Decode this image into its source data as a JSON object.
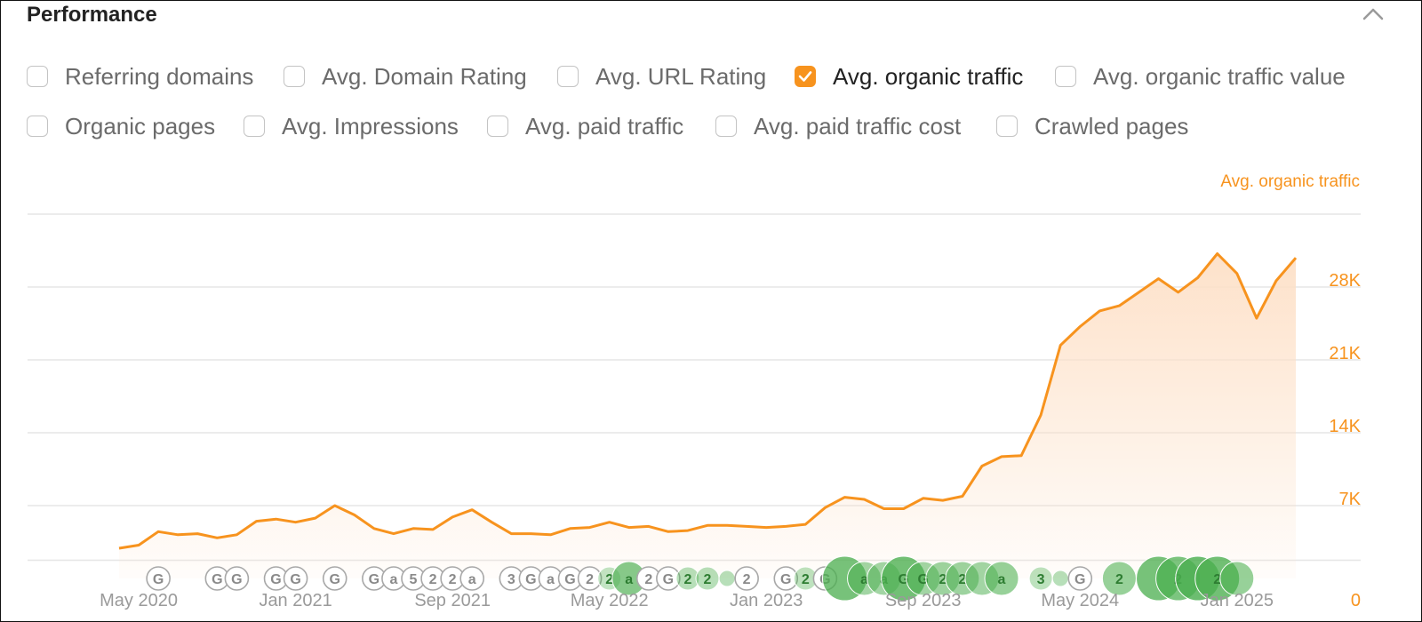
{
  "panel": {
    "title": "Performance"
  },
  "options": [
    {
      "label": "Referring domains",
      "checked": false
    },
    {
      "label": "Avg. Domain Rating",
      "checked": false
    },
    {
      "label": "Avg. URL Rating",
      "checked": false
    },
    {
      "label": "Avg. organic traffic",
      "checked": true
    },
    {
      "label": "Avg. organic traffic value",
      "checked": false
    },
    {
      "label": "Organic pages",
      "checked": false
    },
    {
      "label": "Avg. Impressions",
      "checked": false
    },
    {
      "label": "Avg. paid traffic",
      "checked": false
    },
    {
      "label": "Avg. paid traffic cost",
      "checked": false
    },
    {
      "label": "Crawled pages",
      "checked": false
    }
  ],
  "colors": {
    "accent": "#f7931e",
    "area": "#fde0c7",
    "grid": "#e6e6e6",
    "axis_text": "#9a9a9a",
    "marker_green": "#4caf50"
  },
  "icons": {
    "collapse": "chevron-up-icon",
    "checkbox_checked": "check-icon"
  },
  "chart_data": {
    "type": "area",
    "series": [
      {
        "name": "Avg. organic traffic",
        "values": [
          2900,
          3200,
          4500,
          4200,
          4300,
          3900,
          4200,
          5500,
          5700,
          5400,
          5800,
          7000,
          6100,
          4800,
          4300,
          4800,
          4700,
          5900,
          6600,
          5400,
          4300,
          4300,
          4200,
          4800,
          4900,
          5400,
          4900,
          5000,
          4500,
          4600,
          5100,
          5100,
          5000,
          4900,
          5000,
          5200,
          6800,
          7800,
          7600,
          6700,
          6700,
          7700,
          7500,
          7900,
          10800,
          11700,
          11800,
          15700,
          22400,
          24200,
          25700,
          26200,
          27500,
          28800,
          27500,
          28900,
          31200,
          29300,
          25000,
          28600,
          30800
        ]
      }
    ],
    "x_start": "Apr 2020",
    "x_end": "Apr 2025",
    "x_ticks": [
      "May 2020",
      "Jan 2021",
      "Sep 2021",
      "May 2022",
      "Jan 2023",
      "Sep 2023",
      "May 2024",
      "Jan 2025"
    ],
    "y_ticks": [
      "0",
      "7K",
      "14K",
      "21K",
      "28K"
    ],
    "ylim": [
      0,
      35000
    ],
    "legend": "Avg. organic traffic",
    "legend_position": "top-right",
    "grid": true,
    "markers": [
      {
        "label": "G",
        "date": "Jun 2020",
        "size": "small",
        "tint": 0
      },
      {
        "label": "G",
        "date": "Sep 2020",
        "size": "small",
        "tint": 0
      },
      {
        "label": "G",
        "date": "Oct 2020",
        "size": "small",
        "tint": 0
      },
      {
        "label": "G",
        "date": "Dec 2020",
        "size": "small",
        "tint": 0
      },
      {
        "label": "G",
        "date": "Jan 2021",
        "size": "small",
        "tint": 0
      },
      {
        "label": "G",
        "date": "Mar 2021",
        "size": "small",
        "tint": 0
      },
      {
        "label": "G",
        "date": "May 2021",
        "size": "small",
        "tint": 0
      },
      {
        "label": "a",
        "date": "Jun 2021",
        "size": "small",
        "tint": 0
      },
      {
        "label": "5",
        "date": "Jul 2021",
        "size": "small",
        "tint": 0
      },
      {
        "label": "2",
        "date": "Aug 2021",
        "size": "small",
        "tint": 0
      },
      {
        "label": "2",
        "date": "Sep 2021",
        "size": "small",
        "tint": 0
      },
      {
        "label": "a",
        "date": "Oct 2021",
        "size": "small",
        "tint": 0
      },
      {
        "label": "3",
        "date": "Dec 2021",
        "size": "small",
        "tint": 0
      },
      {
        "label": "G",
        "date": "Jan 2022",
        "size": "small",
        "tint": 0
      },
      {
        "label": "a",
        "date": "Feb 2022",
        "size": "small",
        "tint": 0
      },
      {
        "label": "G",
        "date": "Mar 2022",
        "size": "small",
        "tint": 0
      },
      {
        "label": "2",
        "date": "Apr 2022",
        "size": "small",
        "tint": 0
      },
      {
        "label": "2",
        "date": "May 2022",
        "size": "small",
        "tint": 0.15
      },
      {
        "label": "a",
        "date": "Jun 2022",
        "size": "medium",
        "tint": 0.7
      },
      {
        "label": "2",
        "date": "Jul 2022",
        "size": "small",
        "tint": 0
      },
      {
        "label": "G",
        "date": "Aug 2022",
        "size": "small",
        "tint": 0
      },
      {
        "label": "2",
        "date": "Sep 2022",
        "size": "small",
        "tint": 0.25
      },
      {
        "label": "2",
        "date": "Oct 2022",
        "size": "small",
        "tint": 0.25
      },
      {
        "label": "",
        "date": "Nov 2022",
        "size": "tiny",
        "tint": 0.25
      },
      {
        "label": "2",
        "date": "Dec 2022",
        "size": "small",
        "tint": 0
      },
      {
        "label": "G",
        "date": "Feb 2023",
        "size": "small",
        "tint": 0
      },
      {
        "label": "2",
        "date": "Mar 2023",
        "size": "small",
        "tint": 0.2
      },
      {
        "label": "G",
        "date": "Apr 2023",
        "size": "small",
        "tint": 0
      },
      {
        "label": "",
        "date": "May 2023",
        "size": "large",
        "tint": 0.85
      },
      {
        "label": "a",
        "date": "Jun 2023",
        "size": "medium",
        "tint": 0.45
      },
      {
        "label": "a",
        "date": "Jul 2023",
        "size": "medium",
        "tint": 0.45
      },
      {
        "label": "G",
        "date": "Aug 2023",
        "size": "large",
        "tint": 0.9
      },
      {
        "label": "G",
        "date": "Sep 2023",
        "size": "medium",
        "tint": 0.45
      },
      {
        "label": "2",
        "date": "Oct 2023",
        "size": "medium",
        "tint": 0.5
      },
      {
        "label": "2",
        "date": "Nov 2023",
        "size": "medium",
        "tint": 0.5
      },
      {
        "label": "",
        "date": "Dec 2023",
        "size": "medium",
        "tint": 0.45
      },
      {
        "label": "a",
        "date": "Jan 2024",
        "size": "medium",
        "tint": 0.55
      },
      {
        "label": "3",
        "date": "Mar 2024",
        "size": "small",
        "tint": 0.2
      },
      {
        "label": "",
        "date": "Apr 2024",
        "size": "tiny",
        "tint": 0.25
      },
      {
        "label": "G",
        "date": "May 2024",
        "size": "small",
        "tint": 0
      },
      {
        "label": "2",
        "date": "Jul 2024",
        "size": "medium",
        "tint": 0.55
      },
      {
        "label": "",
        "date": "Sep 2024",
        "size": "large",
        "tint": 0.85
      },
      {
        "label": "2",
        "date": "Oct 2024",
        "size": "large",
        "tint": 0.8
      },
      {
        "label": "",
        "date": "Nov 2024",
        "size": "large",
        "tint": 0.95
      },
      {
        "label": "2",
        "date": "Dec 2024",
        "size": "large",
        "tint": 0.9
      },
      {
        "label": "",
        "date": "Jan 2025",
        "size": "medium",
        "tint": 0.55
      }
    ]
  }
}
